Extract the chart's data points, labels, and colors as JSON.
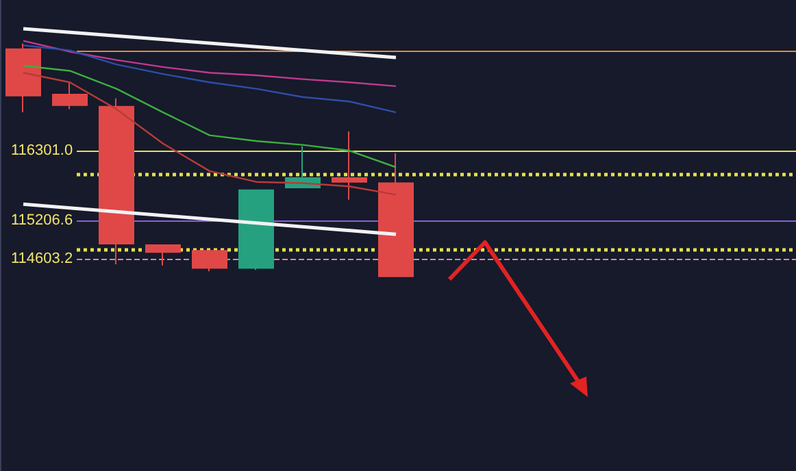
{
  "chart_data": {
    "type": "candlestick",
    "categories": [
      null,
      null,
      null,
      null,
      null,
      null,
      null,
      null,
      null
    ],
    "ohlc": [
      [
        117890,
        117980,
        116900,
        117160
      ],
      [
        117180,
        117370,
        116950,
        117010
      ],
      [
        116990,
        117120,
        114520,
        114840
      ],
      [
        114820,
        114820,
        114500,
        114710
      ],
      [
        114730,
        114730,
        114410,
        114460
      ],
      [
        114460,
        115680,
        114430,
        115680
      ],
      [
        115720,
        116370,
        115720,
        115870
      ],
      [
        115870,
        116600,
        115530,
        115810
      ],
      [
        115790,
        116260,
        114330,
        114330
      ]
    ],
    "colors": [
      "#e04848",
      "#e04848",
      "#e04848",
      "#e04848",
      "#e04848",
      "#26a17f",
      "#26a17f",
      "#e04848",
      "#e04848"
    ],
    "series": [
      {
        "type": "line",
        "color": "#c2398f",
        "values": [
          118020,
          117850,
          117720,
          117610,
          117520,
          117480,
          117420,
          117370,
          117310
        ]
      },
      {
        "type": "line",
        "color": "#2c4fa8",
        "values": [
          117950,
          117870,
          117650,
          117500,
          117370,
          117270,
          117140,
          117070,
          116900
        ]
      },
      {
        "type": "line",
        "color": "#3fae3f",
        "values": [
          117630,
          117550,
          117270,
          116900,
          116540,
          116450,
          116390,
          116300,
          116040
        ]
      },
      {
        "type": "line",
        "color": "#b83a3a",
        "values": [
          117520,
          117370,
          116950,
          116410,
          115980,
          115810,
          115790,
          115740,
          115610
        ]
      },
      {
        "type": "line",
        "color": "#f2f2f2",
        "values": [
          118210,
          null,
          null,
          null,
          null,
          null,
          null,
          null,
          117760
        ]
      },
      {
        "type": "line",
        "color": "#f2f2f2",
        "values": [
          115460,
          null,
          null,
          null,
          null,
          null,
          null,
          null,
          114990
        ]
      }
    ],
    "ref_lines": [
      {
        "axis": "y",
        "value": 117870,
        "color": "#e8873a",
        "line_style": "solid"
      },
      {
        "axis": "y",
        "value": 116301,
        "color": "#e6e04a",
        "line_style": "solid"
      },
      {
        "axis": "y",
        "value": 115920,
        "color": "#e6e04a",
        "line_style": "dotted"
      },
      {
        "axis": "y",
        "value": 115206.6,
        "color": "#8e5fd6",
        "line_style": "solid"
      },
      {
        "axis": "y",
        "value": 114760,
        "color": "#e6e04a",
        "line_style": "dotted"
      },
      {
        "axis": "y",
        "value": 114603.2,
        "color": "#d98a9a",
        "line_style": "dashed"
      }
    ],
    "ylim": [
      111280,
      118660
    ],
    "yticks": [
      114603.2,
      115206.6,
      {
        "value": 116301,
        "label": "116301.0"
      }
    ],
    "tick_labels": "y"
  }
}
